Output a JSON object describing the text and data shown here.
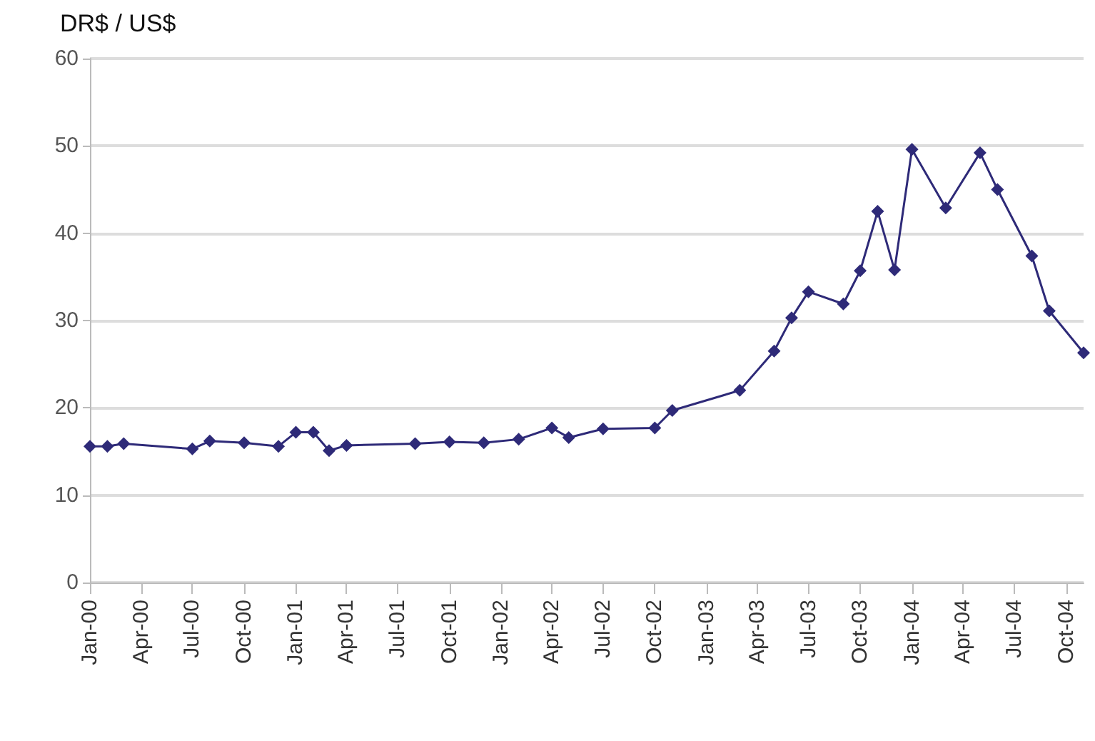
{
  "chart_data": {
    "type": "line",
    "ylabel": "DR$ / US$",
    "x": [
      "2000-01",
      "2000-02",
      "2000-03",
      "2000-07",
      "2000-08",
      "2000-10",
      "2000-12",
      "2001-01",
      "2001-02",
      "2001-03",
      "2001-04",
      "2001-08",
      "2001-10",
      "2001-12",
      "2002-02",
      "2002-04",
      "2002-05",
      "2002-07",
      "2002-10",
      "2002-11",
      "2003-03",
      "2003-05",
      "2003-06",
      "2003-07",
      "2003-09",
      "2003-10",
      "2003-11",
      "2003-12",
      "2004-01",
      "2004-03",
      "2004-05",
      "2004-06",
      "2004-08",
      "2004-09",
      "2004-11"
    ],
    "series": [
      {
        "color": "#2e2a78",
        "values": [
          15.6,
          15.6,
          15.9,
          15.3,
          16.2,
          16.0,
          15.6,
          17.2,
          17.2,
          15.1,
          15.7,
          15.9,
          16.1,
          16.0,
          16.4,
          17.7,
          16.6,
          17.6,
          17.7,
          19.7,
          22.0,
          26.5,
          30.3,
          33.3,
          31.9,
          35.7,
          42.5,
          35.8,
          49.6,
          42.9,
          49.2,
          45.0,
          37.4,
          31.1,
          26.3
        ]
      }
    ],
    "xlim": [
      "2000-01",
      "2004-11"
    ],
    "xticks": [
      {
        "value": "2000-01",
        "label": "Jan-00"
      },
      {
        "value": "2000-04",
        "label": "Apr-00"
      },
      {
        "value": "2000-07",
        "label": "Jul-00"
      },
      {
        "value": "2000-10",
        "label": "Oct-00"
      },
      {
        "value": "2001-01",
        "label": "Jan-01"
      },
      {
        "value": "2001-04",
        "label": "Apr-01"
      },
      {
        "value": "2001-07",
        "label": "Jul-01"
      },
      {
        "value": "2001-10",
        "label": "Oct-01"
      },
      {
        "value": "2002-01",
        "label": "Jan-02"
      },
      {
        "value": "2002-04",
        "label": "Apr-02"
      },
      {
        "value": "2002-07",
        "label": "Jul-02"
      },
      {
        "value": "2002-10",
        "label": "Oct-02"
      },
      {
        "value": "2003-01",
        "label": "Jan-03"
      },
      {
        "value": "2003-04",
        "label": "Apr-03"
      },
      {
        "value": "2003-07",
        "label": "Jul-03"
      },
      {
        "value": "2003-10",
        "label": "Oct-03"
      },
      {
        "value": "2004-01",
        "label": "Jan-04"
      },
      {
        "value": "2004-04",
        "label": "Apr-04"
      },
      {
        "value": "2004-07",
        "label": "Jul-04"
      },
      {
        "value": "2004-10",
        "label": "Oct-04"
      }
    ],
    "ylim": [
      0,
      60
    ],
    "yticks": [
      0,
      10,
      20,
      30,
      40,
      50,
      60
    ],
    "grid": "y",
    "marker": "diamond",
    "line_style": "solid"
  }
}
